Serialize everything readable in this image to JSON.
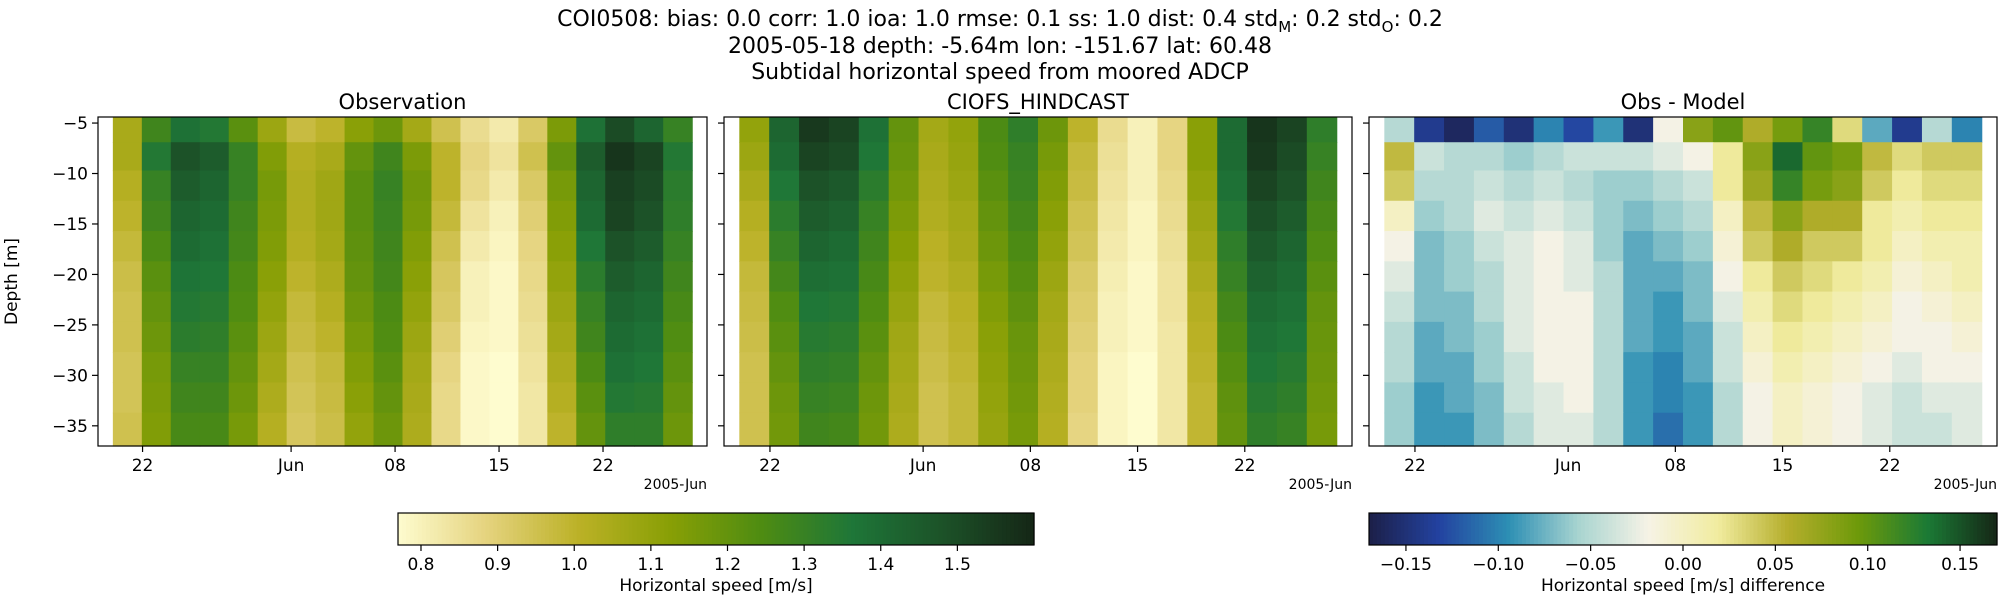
{
  "figure": {
    "title_line1_prefix": "COI0508: bias: 0.0  corr: 1.0  ioa: 1.0  rmse: 0.1  ss: 1.0  dist: 0.4  std",
    "title_line1_sub_model": "M",
    "title_line1_mid": ": 0.2  std",
    "title_line1_sub_obs": "O",
    "title_line1_end": ": 0.2",
    "title_line2": "2005-05-18 depth: -5.64m lon: -151.67 lat: 60.48",
    "title_line3": "Subtidal horizontal speed from moored ADCP"
  },
  "colors": {
    "speed_cmap": [
      "#fefccf",
      "#e4d27c",
      "#bbb126",
      "#889f05",
      "#4e8c12",
      "#1e7638",
      "#1c5228",
      "#152616"
    ],
    "diff_cmap": [
      "#1c1f48",
      "#2342a0",
      "#2d8fb4",
      "#a8d4d0",
      "#f6f3e6",
      "#f1ec9f",
      "#b5ae2c",
      "#6e9a0a",
      "#1b7a35",
      "#152616"
    ],
    "axis": "#000000"
  },
  "chart_data": [
    {
      "type": "heatmap",
      "title": "Observation",
      "ylabel": "Depth [m]",
      "xlabel": "",
      "date_offset_label": "2005-Jun",
      "x_range": [
        "2005-05-19",
        "2005-06-29"
      ],
      "ylim": [
        -37,
        -4.4
      ],
      "yticks": [
        -5,
        -10,
        -15,
        -20,
        -25,
        -30,
        -35
      ],
      "xticks": [
        {
          "date": "2005-05-22",
          "label": "22"
        },
        {
          "date": "2005-06-01",
          "label": "Jun"
        },
        {
          "date": "2005-06-08",
          "label": "08"
        },
        {
          "date": "2005-06-15",
          "label": "15"
        },
        {
          "date": "2005-06-22",
          "label": "22"
        }
      ],
      "depths": [
        -5.6,
        -8.2,
        -11.2,
        -14.2,
        -17.2,
        -20.2,
        -23.2,
        -26.2,
        -29.2,
        -32.2,
        -35.2
      ],
      "time_start": "2005-05-20",
      "time_end": "2005-06-28",
      "time_values": [
        [
          1.05,
          1.28,
          1.38,
          1.35,
          1.22,
          1.08,
          0.97,
          1.0,
          1.12,
          1.18,
          1.06,
          0.95,
          0.86,
          0.82,
          0.92,
          1.15,
          1.38,
          1.5,
          1.42,
          1.3
        ],
        [
          1.05,
          1.35,
          1.48,
          1.45,
          1.3,
          1.14,
          1.02,
          1.05,
          1.2,
          1.28,
          1.15,
          1.0,
          0.88,
          0.84,
          0.95,
          1.2,
          1.45,
          1.56,
          1.52,
          1.35
        ],
        [
          1.02,
          1.3,
          1.45,
          1.42,
          1.3,
          1.16,
          1.03,
          1.07,
          1.22,
          1.3,
          1.17,
          1.0,
          0.87,
          0.82,
          0.92,
          1.16,
          1.42,
          1.53,
          1.5,
          1.33
        ],
        [
          1.0,
          1.28,
          1.42,
          1.4,
          1.28,
          1.15,
          1.03,
          1.07,
          1.22,
          1.29,
          1.16,
          0.98,
          0.84,
          0.8,
          0.9,
          1.14,
          1.4,
          1.52,
          1.48,
          1.32
        ],
        [
          0.98,
          1.25,
          1.4,
          1.38,
          1.27,
          1.14,
          1.02,
          1.06,
          1.21,
          1.28,
          1.14,
          0.95,
          0.82,
          0.79,
          0.88,
          1.12,
          1.36,
          1.48,
          1.45,
          1.3
        ],
        [
          0.96,
          1.22,
          1.37,
          1.36,
          1.25,
          1.12,
          1.0,
          1.04,
          1.2,
          1.27,
          1.12,
          0.93,
          0.8,
          0.78,
          0.87,
          1.1,
          1.33,
          1.45,
          1.42,
          1.28
        ],
        [
          0.95,
          1.2,
          1.35,
          1.34,
          1.24,
          1.1,
          0.98,
          1.02,
          1.18,
          1.25,
          1.1,
          0.92,
          0.8,
          0.78,
          0.86,
          1.08,
          1.3,
          1.42,
          1.4,
          1.26
        ],
        [
          0.95,
          1.18,
          1.33,
          1.32,
          1.22,
          1.08,
          0.97,
          1.0,
          1.16,
          1.24,
          1.08,
          0.9,
          0.79,
          0.78,
          0.85,
          1.06,
          1.28,
          1.4,
          1.38,
          1.24
        ],
        [
          0.94,
          1.16,
          1.3,
          1.3,
          1.2,
          1.06,
          0.95,
          0.98,
          1.14,
          1.22,
          1.06,
          0.88,
          0.78,
          0.77,
          0.84,
          1.04,
          1.25,
          1.38,
          1.36,
          1.22
        ],
        [
          0.94,
          1.15,
          1.28,
          1.28,
          1.18,
          1.04,
          0.94,
          0.97,
          1.12,
          1.2,
          1.05,
          0.87,
          0.78,
          0.77,
          0.83,
          1.02,
          1.22,
          1.35,
          1.34,
          1.2
        ],
        [
          0.95,
          1.14,
          1.26,
          1.26,
          1.16,
          1.02,
          0.93,
          0.96,
          1.1,
          1.18,
          1.04,
          0.87,
          0.78,
          0.77,
          0.83,
          1.0,
          1.2,
          1.32,
          1.32,
          1.18
        ]
      ]
    },
    {
      "type": "heatmap",
      "title": "CIOFS_HINDCAST",
      "ylabel": "",
      "xlabel": "",
      "date_offset_label": "2005-Jun",
      "x_range": [
        "2005-05-19",
        "2005-06-29"
      ],
      "ylim": [
        -37,
        -4.4
      ],
      "yticks": [
        -5,
        -10,
        -15,
        -20,
        -25,
        -30,
        -35
      ],
      "xticks": [
        {
          "date": "2005-05-22",
          "label": "22"
        },
        {
          "date": "2005-06-01",
          "label": "Jun"
        },
        {
          "date": "2005-06-08",
          "label": "08"
        },
        {
          "date": "2005-06-15",
          "label": "15"
        },
        {
          "date": "2005-06-22",
          "label": "22"
        }
      ],
      "depths": [
        -5.6,
        -8.2,
        -11.2,
        -14.2,
        -17.2,
        -20.2,
        -23.2,
        -26.2,
        -29.2,
        -32.2,
        -35.2
      ],
      "time_start": "2005-05-20",
      "time_end": "2005-06-28",
      "time_values": [
        [
          1.1,
          1.42,
          1.55,
          1.52,
          1.38,
          1.2,
          1.06,
          1.1,
          1.25,
          1.32,
          1.18,
          1.0,
          0.86,
          0.8,
          0.88,
          1.12,
          1.4,
          1.56,
          1.52,
          1.32
        ],
        [
          1.08,
          1.4,
          1.52,
          1.5,
          1.36,
          1.19,
          1.05,
          1.09,
          1.24,
          1.3,
          1.16,
          0.98,
          0.85,
          0.8,
          0.88,
          1.12,
          1.4,
          1.55,
          1.5,
          1.3
        ],
        [
          1.05,
          1.36,
          1.48,
          1.46,
          1.33,
          1.17,
          1.04,
          1.08,
          1.22,
          1.29,
          1.14,
          0.97,
          0.84,
          0.8,
          0.87,
          1.1,
          1.38,
          1.52,
          1.48,
          1.28
        ],
        [
          1.02,
          1.33,
          1.45,
          1.43,
          1.3,
          1.15,
          1.03,
          1.06,
          1.2,
          1.27,
          1.12,
          0.95,
          0.83,
          0.79,
          0.86,
          1.08,
          1.35,
          1.49,
          1.45,
          1.26
        ],
        [
          1.0,
          1.3,
          1.42,
          1.4,
          1.28,
          1.13,
          1.01,
          1.05,
          1.18,
          1.25,
          1.1,
          0.94,
          0.82,
          0.79,
          0.85,
          1.06,
          1.32,
          1.46,
          1.42,
          1.24
        ],
        [
          0.98,
          1.27,
          1.39,
          1.38,
          1.26,
          1.11,
          1.0,
          1.03,
          1.16,
          1.23,
          1.08,
          0.92,
          0.81,
          0.78,
          0.84,
          1.04,
          1.3,
          1.43,
          1.4,
          1.22
        ],
        [
          0.97,
          1.24,
          1.36,
          1.35,
          1.24,
          1.09,
          0.98,
          1.01,
          1.14,
          1.21,
          1.06,
          0.91,
          0.8,
          0.78,
          0.84,
          1.02,
          1.27,
          1.4,
          1.38,
          1.2
        ],
        [
          0.96,
          1.22,
          1.34,
          1.33,
          1.22,
          1.07,
          0.97,
          1.0,
          1.12,
          1.19,
          1.05,
          0.9,
          0.8,
          0.78,
          0.83,
          1.01,
          1.25,
          1.38,
          1.36,
          1.19
        ],
        [
          0.95,
          1.2,
          1.32,
          1.31,
          1.2,
          1.06,
          0.96,
          0.99,
          1.11,
          1.18,
          1.04,
          0.89,
          0.79,
          0.77,
          0.83,
          1.0,
          1.23,
          1.36,
          1.34,
          1.18
        ],
        [
          0.95,
          1.18,
          1.3,
          1.29,
          1.18,
          1.05,
          0.95,
          0.98,
          1.1,
          1.17,
          1.03,
          0.89,
          0.79,
          0.77,
          0.83,
          0.99,
          1.21,
          1.34,
          1.32,
          1.17
        ],
        [
          0.95,
          1.17,
          1.28,
          1.27,
          1.17,
          1.04,
          0.95,
          0.98,
          1.09,
          1.16,
          1.02,
          0.88,
          0.79,
          0.77,
          0.83,
          0.99,
          1.2,
          1.32,
          1.3,
          1.16
        ]
      ]
    },
    {
      "type": "heatmap",
      "title": "Obs - Model",
      "ylabel": "",
      "xlabel": "",
      "date_offset_label": "2005-Jun",
      "x_range": [
        "2005-05-19",
        "2005-06-29"
      ],
      "ylim": [
        -37,
        -4.4
      ],
      "yticks": [
        -5,
        -10,
        -15,
        -20,
        -25,
        -30,
        -35
      ],
      "xticks": [
        {
          "date": "2005-05-22",
          "label": "22"
        },
        {
          "date": "2005-06-01",
          "label": "Jun"
        },
        {
          "date": "2005-06-08",
          "label": "08"
        },
        {
          "date": "2005-06-15",
          "label": "15"
        },
        {
          "date": "2005-06-22",
          "label": "22"
        }
      ],
      "depths": [
        -5.6,
        -8.2,
        -11.2,
        -14.2,
        -17.2,
        -20.2,
        -23.2,
        -26.2,
        -29.2,
        -32.2,
        -35.2
      ],
      "time_start": "2005-05-20",
      "time_end": "2005-06-28",
      "time_values": [
        [
          -0.05,
          -0.14,
          -0.16,
          -0.12,
          -0.15,
          -0.1,
          -0.13,
          -0.09,
          -0.15,
          -0.02,
          0.08,
          0.1,
          0.06,
          0.09,
          0.12,
          0.03,
          -0.08,
          -0.14,
          -0.05,
          -0.1
        ],
        [
          0.05,
          -0.04,
          -0.05,
          -0.05,
          -0.06,
          -0.05,
          -0.04,
          -0.04,
          -0.04,
          -0.03,
          -0.02,
          0.02,
          0.08,
          0.14,
          0.1,
          0.09,
          0.05,
          0.03,
          0.04,
          0.04
        ],
        [
          0.04,
          -0.05,
          -0.05,
          -0.04,
          -0.05,
          -0.04,
          -0.05,
          -0.06,
          -0.06,
          -0.05,
          -0.04,
          0.02,
          0.07,
          0.12,
          0.09,
          0.08,
          0.04,
          0.02,
          0.03,
          0.03
        ],
        [
          0.0,
          -0.06,
          -0.05,
          -0.03,
          -0.04,
          -0.03,
          -0.04,
          -0.06,
          -0.07,
          -0.06,
          -0.05,
          0.0,
          0.05,
          0.08,
          0.06,
          0.06,
          0.02,
          0.01,
          0.02,
          0.02
        ],
        [
          -0.02,
          -0.07,
          -0.06,
          -0.04,
          -0.03,
          -0.02,
          -0.03,
          -0.06,
          -0.08,
          -0.07,
          -0.06,
          -0.01,
          0.04,
          0.06,
          0.04,
          0.04,
          0.02,
          0.0,
          0.01,
          0.01
        ],
        [
          -0.03,
          -0.07,
          -0.06,
          -0.05,
          -0.03,
          -0.02,
          -0.03,
          -0.05,
          -0.08,
          -0.08,
          -0.07,
          -0.02,
          0.02,
          0.04,
          0.03,
          0.02,
          0.01,
          -0.01,
          0.0,
          0.01
        ],
        [
          -0.04,
          -0.07,
          -0.07,
          -0.05,
          -0.03,
          -0.02,
          -0.02,
          -0.05,
          -0.08,
          -0.09,
          -0.07,
          -0.03,
          0.01,
          0.03,
          0.02,
          0.01,
          0.0,
          -0.02,
          -0.01,
          0.0
        ],
        [
          -0.05,
          -0.08,
          -0.07,
          -0.06,
          -0.03,
          -0.02,
          -0.02,
          -0.05,
          -0.08,
          -0.09,
          -0.08,
          -0.04,
          0.0,
          0.02,
          0.01,
          0.0,
          -0.01,
          -0.02,
          -0.02,
          -0.01
        ],
        [
          -0.05,
          -0.08,
          -0.08,
          -0.06,
          -0.04,
          -0.02,
          -0.02,
          -0.05,
          -0.09,
          -0.1,
          -0.08,
          -0.04,
          -0.01,
          0.01,
          0.0,
          -0.01,
          -0.02,
          -0.03,
          -0.02,
          -0.02
        ],
        [
          -0.06,
          -0.09,
          -0.08,
          -0.07,
          -0.04,
          -0.03,
          -0.02,
          -0.05,
          -0.09,
          -0.1,
          -0.09,
          -0.05,
          -0.02,
          0.0,
          -0.01,
          -0.02,
          -0.03,
          -0.04,
          -0.03,
          -0.03
        ],
        [
          -0.06,
          -0.09,
          -0.09,
          -0.07,
          -0.05,
          -0.03,
          -0.03,
          -0.05,
          -0.09,
          -0.11,
          -0.09,
          -0.05,
          -0.02,
          0.0,
          -0.01,
          -0.02,
          -0.03,
          -0.04,
          -0.04,
          -0.03
        ]
      ]
    }
  ],
  "colorbars": [
    {
      "label": "Horizontal speed [m/s]",
      "range": [
        0.77,
        1.6
      ],
      "ticks": [
        {
          "value": 0.8,
          "label": "0.8"
        },
        {
          "value": 0.9,
          "label": "0.9"
        },
        {
          "value": 1.0,
          "label": "1.0"
        },
        {
          "value": 1.1,
          "label": "1.1"
        },
        {
          "value": 1.2,
          "label": "1.2"
        },
        {
          "value": 1.3,
          "label": "1.3"
        },
        {
          "value": 1.4,
          "label": "1.4"
        },
        {
          "value": 1.5,
          "label": "1.5"
        }
      ]
    },
    {
      "label": "Horizontal speed [m/s] difference",
      "range": [
        -0.17,
        0.17
      ],
      "ticks": [
        {
          "value": -0.15,
          "label": "−0.15"
        },
        {
          "value": -0.1,
          "label": "−0.10"
        },
        {
          "value": -0.05,
          "label": "−0.05"
        },
        {
          "value": 0.0,
          "label": "0.00"
        },
        {
          "value": 0.05,
          "label": "0.05"
        },
        {
          "value": 0.1,
          "label": "0.10"
        },
        {
          "value": 0.15,
          "label": "0.15"
        }
      ]
    }
  ]
}
